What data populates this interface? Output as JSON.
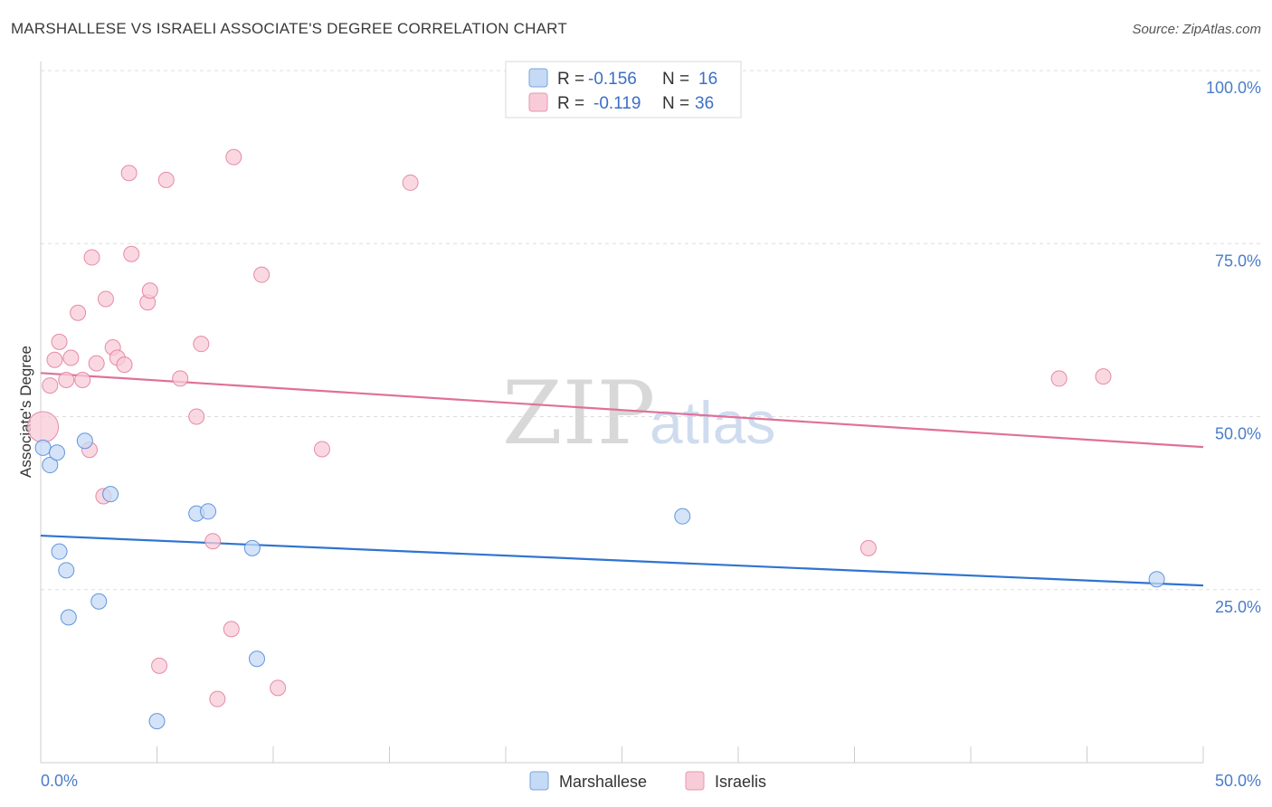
{
  "header": {
    "title": "MARSHALLESE VS ISRAELI ASSOCIATE'S DEGREE CORRELATION CHART",
    "source": "Source: ZipAtlas.com"
  },
  "watermark": {
    "zip": "ZIP",
    "atlas": "atlas"
  },
  "chart_data": {
    "type": "scatter",
    "title": "MARSHALLESE VS ISRAELI ASSOCIATE'S DEGREE CORRELATION CHART",
    "xlabel": "",
    "ylabel": "Associate's Degree",
    "xlim": [
      0,
      50
    ],
    "ylim": [
      0,
      100
    ],
    "x_tick_labels": [
      "0.0%",
      "50.0%"
    ],
    "y_ticks": [
      25,
      50,
      75,
      100
    ],
    "y_tick_labels": [
      "25.0%",
      "50.0%",
      "75.0%",
      "100.0%"
    ],
    "grid": true,
    "legend": {
      "position": "top-center",
      "entries": [
        {
          "name": "Marshallese",
          "r_label": "R =",
          "r_value": "-0.156",
          "n_label": "N =",
          "n_value": "16"
        },
        {
          "name": "Israelis",
          "r_label": "R =",
          "r_value": "-0.119",
          "n_label": "N =",
          "n_value": "36"
        }
      ]
    },
    "series": [
      {
        "name": "Marshallese",
        "color": "#4a86d8",
        "fill": "#c5daf5",
        "points": [
          {
            "x": 0.1,
            "y": 45.5,
            "size": "small"
          },
          {
            "x": 0.4,
            "y": 43.0,
            "size": "small"
          },
          {
            "x": 0.7,
            "y": 44.8,
            "size": "small"
          },
          {
            "x": 0.8,
            "y": 30.5,
            "size": "small"
          },
          {
            "x": 1.1,
            "y": 27.8,
            "size": "small"
          },
          {
            "x": 1.2,
            "y": 21.0,
            "size": "small"
          },
          {
            "x": 1.9,
            "y": 46.5,
            "size": "small"
          },
          {
            "x": 2.5,
            "y": 23.3,
            "size": "small"
          },
          {
            "x": 3.0,
            "y": 38.8,
            "size": "small"
          },
          {
            "x": 5.0,
            "y": 6.0,
            "size": "small"
          },
          {
            "x": 6.7,
            "y": 36.0,
            "size": "small"
          },
          {
            "x": 7.2,
            "y": 36.3,
            "size": "small"
          },
          {
            "x": 9.1,
            "y": 31.0,
            "size": "small"
          },
          {
            "x": 9.3,
            "y": 15.0,
            "size": "small"
          },
          {
            "x": 27.6,
            "y": 35.6,
            "size": "small"
          },
          {
            "x": 48.0,
            "y": 26.5,
            "size": "small"
          }
        ],
        "trend": {
          "x1": 0,
          "y1": 32.8,
          "x2": 50,
          "y2": 25.6
        }
      },
      {
        "name": "Israelis",
        "color": "#e07a9a",
        "fill": "#f8cbd8",
        "points": [
          {
            "x": 0.1,
            "y": 48.5,
            "size": "large"
          },
          {
            "x": 0.4,
            "y": 54.5,
            "size": "small"
          },
          {
            "x": 0.6,
            "y": 58.2,
            "size": "small"
          },
          {
            "x": 0.8,
            "y": 60.8,
            "size": "small"
          },
          {
            "x": 1.1,
            "y": 55.3,
            "size": "small"
          },
          {
            "x": 1.3,
            "y": 58.5,
            "size": "small"
          },
          {
            "x": 1.6,
            "y": 65.0,
            "size": "small"
          },
          {
            "x": 1.8,
            "y": 55.3,
            "size": "small"
          },
          {
            "x": 2.1,
            "y": 45.2,
            "size": "small"
          },
          {
            "x": 2.2,
            "y": 73.0,
            "size": "small"
          },
          {
            "x": 2.4,
            "y": 57.7,
            "size": "small"
          },
          {
            "x": 2.7,
            "y": 38.5,
            "size": "small"
          },
          {
            "x": 2.8,
            "y": 67.0,
            "size": "small"
          },
          {
            "x": 3.1,
            "y": 60.0,
            "size": "small"
          },
          {
            "x": 3.3,
            "y": 58.5,
            "size": "small"
          },
          {
            "x": 3.6,
            "y": 57.5,
            "size": "small"
          },
          {
            "x": 3.8,
            "y": 85.2,
            "size": "small"
          },
          {
            "x": 3.9,
            "y": 73.5,
            "size": "small"
          },
          {
            "x": 4.6,
            "y": 66.5,
            "size": "small"
          },
          {
            "x": 4.7,
            "y": 68.2,
            "size": "small"
          },
          {
            "x": 5.1,
            "y": 14.0,
            "size": "small"
          },
          {
            "x": 5.4,
            "y": 84.2,
            "size": "small"
          },
          {
            "x": 6.0,
            "y": 55.5,
            "size": "small"
          },
          {
            "x": 6.7,
            "y": 50.0,
            "size": "small"
          },
          {
            "x": 6.9,
            "y": 60.5,
            "size": "small"
          },
          {
            "x": 7.4,
            "y": 32.0,
            "size": "small"
          },
          {
            "x": 7.6,
            "y": 9.2,
            "size": "small"
          },
          {
            "x": 8.2,
            "y": 19.3,
            "size": "small"
          },
          {
            "x": 8.3,
            "y": 87.5,
            "size": "small"
          },
          {
            "x": 9.5,
            "y": 70.5,
            "size": "small"
          },
          {
            "x": 10.2,
            "y": 10.8,
            "size": "small"
          },
          {
            "x": 12.1,
            "y": 45.3,
            "size": "small"
          },
          {
            "x": 15.9,
            "y": 83.8,
            "size": "small"
          },
          {
            "x": 35.6,
            "y": 31.0,
            "size": "small"
          },
          {
            "x": 43.8,
            "y": 55.5,
            "size": "small"
          },
          {
            "x": 45.7,
            "y": 55.8,
            "size": "small"
          }
        ],
        "trend": {
          "x1": 0,
          "y1": 56.3,
          "x2": 50,
          "y2": 45.6
        }
      }
    ]
  }
}
